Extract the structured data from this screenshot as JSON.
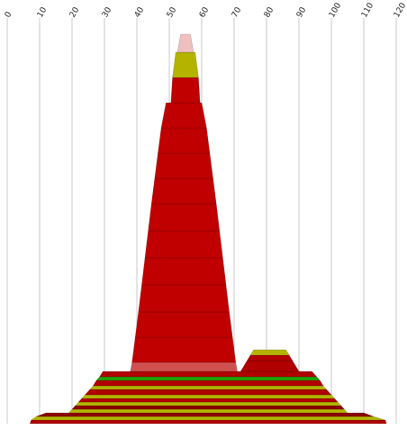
{
  "chart_data": {
    "type": "area",
    "title": "",
    "xlabel": "",
    "ylabel": "",
    "x_ticks": [
      0,
      10,
      20,
      30,
      40,
      50,
      60,
      70,
      80,
      90,
      100,
      110,
      120
    ],
    "xlim": [
      0,
      120
    ],
    "ylim": [
      0,
      108
    ],
    "grid": "vertical",
    "legend": "none",
    "palette": {
      "dark_red": "#b00000",
      "red": "#c00000",
      "maroon": "#8b0000",
      "olive": "#b4b400",
      "green": "#20a000",
      "light_red": "#d05050",
      "pink": "#f0c0c0"
    },
    "bands": [
      {
        "color": "dark_red",
        "y0": 0,
        "y1": 1,
        "x": [
          {
            "y": 0,
            "left": 7,
            "right": 117
          },
          {
            "y": 1,
            "left": 7.4,
            "right": 116.6
          }
        ]
      },
      {
        "color": "olive",
        "y0": 1,
        "y1": 2,
        "x": [
          {
            "y": 1,
            "left": 7.4,
            "right": 116.6
          },
          {
            "y": 2,
            "left": 9,
            "right": 113
          }
        ]
      },
      {
        "color": "maroon",
        "y0": 2,
        "y1": 3,
        "x": [
          {
            "y": 2,
            "left": 9,
            "right": 113
          },
          {
            "y": 3,
            "left": 12,
            "right": 110
          }
        ]
      },
      {
        "color": "olive",
        "y0": 3,
        "y1": 4,
        "x": [
          {
            "y": 3,
            "left": 19,
            "right": 105
          },
          {
            "y": 4,
            "left": 20,
            "right": 104
          }
        ]
      },
      {
        "color": "maroon",
        "y0": 4,
        "y1": 5,
        "x": [
          {
            "y": 4,
            "left": 20,
            "right": 104
          },
          {
            "y": 5,
            "left": 21,
            "right": 103
          }
        ]
      },
      {
        "color": "olive",
        "y0": 5,
        "y1": 6,
        "x": [
          {
            "y": 5,
            "left": 21,
            "right": 103
          },
          {
            "y": 6,
            "left": 22,
            "right": 102
          }
        ]
      },
      {
        "color": "dark_red",
        "y0": 6,
        "y1": 7,
        "x": [
          {
            "y": 6,
            "left": 22,
            "right": 102
          },
          {
            "y": 7,
            "left": 23,
            "right": 101
          }
        ]
      },
      {
        "color": "olive",
        "y0": 7,
        "y1": 8,
        "x": [
          {
            "y": 7,
            "left": 23,
            "right": 101
          },
          {
            "y": 8,
            "left": 24,
            "right": 100
          }
        ]
      },
      {
        "color": "dark_red",
        "y0": 8,
        "y1": 9.5,
        "x": [
          {
            "y": 8,
            "left": 24,
            "right": 100
          },
          {
            "y": 9.5,
            "left": 25.5,
            "right": 98.5
          }
        ]
      },
      {
        "color": "olive",
        "y0": 9.5,
        "y1": 10.5,
        "x": [
          {
            "y": 9.5,
            "left": 25.5,
            "right": 98.5
          },
          {
            "y": 10.5,
            "left": 26.5,
            "right": 97.5
          }
        ]
      },
      {
        "color": "dark_red",
        "y0": 10.5,
        "y1": 12,
        "x": [
          {
            "y": 10.5,
            "left": 26.5,
            "right": 97.5
          },
          {
            "y": 12,
            "left": 27.5,
            "right": 96.5
          }
        ]
      },
      {
        "color": "green",
        "y0": 12,
        "y1": 13,
        "x": [
          {
            "y": 12,
            "left": 27.5,
            "right": 96.5
          },
          {
            "y": 13,
            "left": 28.5,
            "right": 95.5
          }
        ]
      },
      {
        "color": "dark_red",
        "y0": 13,
        "y1": 14.5,
        "x": [
          {
            "y": 13,
            "left": 28.5,
            "right": 95.5
          },
          {
            "y": 14.5,
            "left": 29.5,
            "right": 94
          }
        ]
      },
      {
        "color": "light_red",
        "y0": 14.5,
        "y1": 17,
        "x": [
          {
            "y": 14.5,
            "left": 38,
            "right": 71
          },
          {
            "y": 17,
            "left": 38.5,
            "right": 70.5
          }
        ]
      },
      {
        "color": "dark_red",
        "y0": 14.5,
        "y1": 17.5,
        "x": [
          {
            "y": 14.5,
            "left": 72,
            "right": 90
          },
          {
            "y": 17.5,
            "left": 74,
            "right": 88
          }
        ]
      },
      {
        "color": "dark_red",
        "y0": 17.5,
        "y1": 19,
        "x": [
          {
            "y": 17.5,
            "left": 74,
            "right": 88
          },
          {
            "y": 19,
            "left": 75,
            "right": 87
          }
        ]
      },
      {
        "color": "olive",
        "y0": 19,
        "y1": 20.5,
        "x": [
          {
            "y": 19,
            "left": 75,
            "right": 87
          },
          {
            "y": 20.5,
            "left": 76,
            "right": 86
          }
        ]
      },
      {
        "color": "red",
        "y0": 17,
        "y1": 24,
        "x": [
          {
            "y": 17,
            "left": 38.5,
            "right": 70.5
          },
          {
            "y": 24,
            "left": 39.5,
            "right": 69.5
          }
        ]
      },
      {
        "color": "red",
        "y0": 24,
        "y1": 31,
        "x": [
          {
            "y": 24,
            "left": 39.5,
            "right": 69.5
          },
          {
            "y": 31,
            "left": 40.5,
            "right": 68.5
          }
        ]
      },
      {
        "color": "red",
        "y0": 31,
        "y1": 38.5,
        "x": [
          {
            "y": 31,
            "left": 40.5,
            "right": 68.5
          },
          {
            "y": 38.5,
            "left": 41.5,
            "right": 67.5
          }
        ]
      },
      {
        "color": "red",
        "y0": 38.5,
        "y1": 46,
        "x": [
          {
            "y": 38.5,
            "left": 41.5,
            "right": 67.5
          },
          {
            "y": 46,
            "left": 42.5,
            "right": 66.5
          }
        ]
      },
      {
        "color": "red",
        "y0": 46,
        "y1": 53.5,
        "x": [
          {
            "y": 46,
            "left": 42.5,
            "right": 66.5
          },
          {
            "y": 53.5,
            "left": 43.5,
            "right": 65.5
          }
        ]
      },
      {
        "color": "red",
        "y0": 53.5,
        "y1": 61,
        "x": [
          {
            "y": 53.5,
            "left": 43.5,
            "right": 65.5
          },
          {
            "y": 61,
            "left": 44.5,
            "right": 64.5
          }
        ]
      },
      {
        "color": "red",
        "y0": 61,
        "y1": 68,
        "x": [
          {
            "y": 61,
            "left": 44.5,
            "right": 64.5
          },
          {
            "y": 68,
            "left": 45.5,
            "right": 63.5
          }
        ]
      },
      {
        "color": "red",
        "y0": 68,
        "y1": 75,
        "x": [
          {
            "y": 68,
            "left": 45.5,
            "right": 63.5
          },
          {
            "y": 75,
            "left": 46.5,
            "right": 62.5
          }
        ]
      },
      {
        "color": "red",
        "y0": 75,
        "y1": 82,
        "x": [
          {
            "y": 75,
            "left": 46.5,
            "right": 62.5
          },
          {
            "y": 82,
            "left": 47.5,
            "right": 61.5
          }
        ]
      },
      {
        "color": "red",
        "y0": 82,
        "y1": 89,
        "x": [
          {
            "y": 82,
            "left": 47.5,
            "right": 61.5
          },
          {
            "y": 89,
            "left": 49,
            "right": 60
          }
        ]
      },
      {
        "color": "red",
        "y0": 89,
        "y1": 96,
        "x": [
          {
            "y": 89,
            "left": 50.5,
            "right": 59.5
          },
          {
            "y": 96,
            "left": 51,
            "right": 59
          }
        ]
      },
      {
        "color": "olive",
        "y0": 96,
        "y1": 103,
        "x": [
          {
            "y": 96,
            "left": 51,
            "right": 59
          },
          {
            "y": 103,
            "left": 52,
            "right": 58
          }
        ]
      },
      {
        "color": "pink",
        "y0": 103,
        "y1": 108,
        "x": [
          {
            "y": 103,
            "left": 52.5,
            "right": 57.5
          },
          {
            "y": 108,
            "left": 53.5,
            "right": 56.5
          }
        ]
      }
    ]
  }
}
